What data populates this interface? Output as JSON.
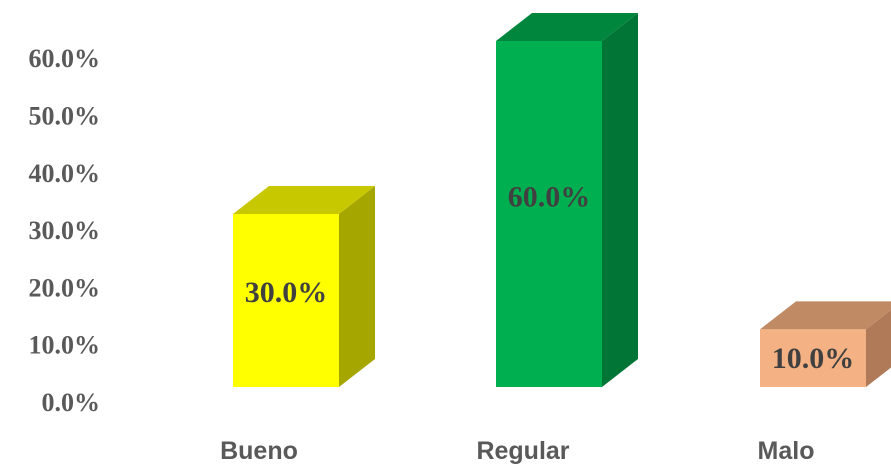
{
  "chart_data": {
    "type": "bar",
    "categories": [
      "Bueno",
      "Regular",
      "Malo"
    ],
    "values": [
      30.0,
      60.0,
      10.0
    ],
    "data_labels": [
      "30.0%",
      "60.0%",
      "10.0%"
    ],
    "ytick_labels": [
      "0.0%",
      "10.0%",
      "20.0%",
      "30.0%",
      "40.0%",
      "50.0%",
      "60.0%"
    ],
    "ylim": [
      0,
      60
    ],
    "title": "",
    "xlabel": "",
    "ylabel": "",
    "grid": false,
    "legend": "none",
    "style": "3d-column",
    "bar_colors": [
      {
        "front": "#ffff00",
        "top": "#c8c800",
        "side": "#a6a600"
      },
      {
        "front": "#00b050",
        "top": "#00873d",
        "side": "#007535"
      },
      {
        "front": "#f4b183",
        "top": "#c08a65",
        "side": "#b07a58"
      }
    ]
  }
}
